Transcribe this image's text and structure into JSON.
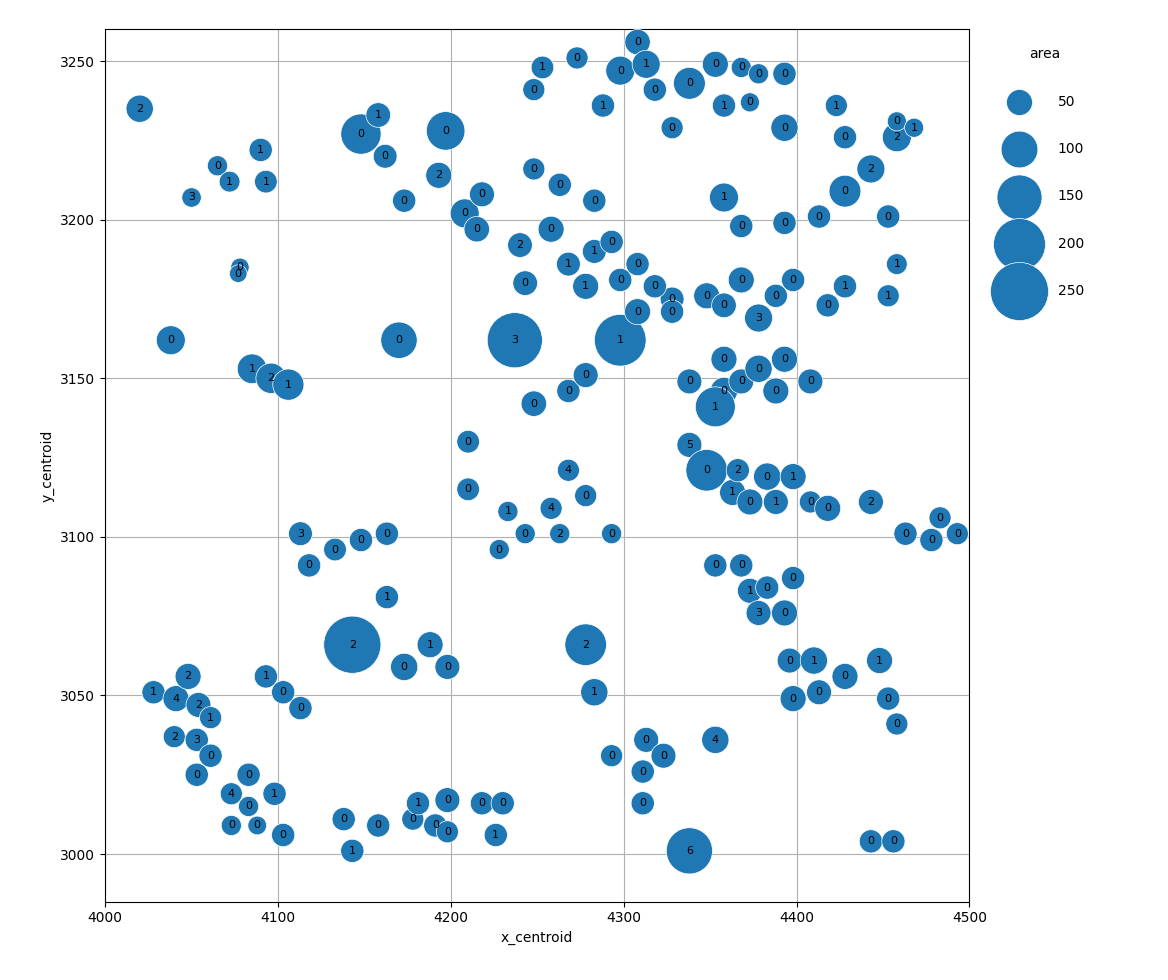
{
  "chart_data": {
    "type": "bubble",
    "xlabel": "x_centroid",
    "ylabel": "y_centroid",
    "xlim": [
      4000,
      4500
    ],
    "ylim": [
      2985,
      3260
    ],
    "xticks": [
      4000,
      4100,
      4200,
      4300,
      4400,
      4500
    ],
    "yticks": [
      3000,
      3050,
      3100,
      3150,
      3200,
      3250
    ],
    "grid": true,
    "legend": "upper left",
    "size_legend": {
      "title": "area",
      "values": [
        50,
        100,
        150,
        200,
        250
      ]
    },
    "points": [
      {
        "x": 4020,
        "y": 3235,
        "size": 55,
        "label": "2"
      },
      {
        "x": 4065,
        "y": 3217,
        "size": 30,
        "label": "0"
      },
      {
        "x": 4090,
        "y": 3222,
        "size": 40,
        "label": "1"
      },
      {
        "x": 4050,
        "y": 3207,
        "size": 28,
        "label": "3"
      },
      {
        "x": 4072,
        "y": 3212,
        "size": 32,
        "label": "1"
      },
      {
        "x": 4093,
        "y": 3212,
        "size": 38,
        "label": "1"
      },
      {
        "x": 4078,
        "y": 3185,
        "size": 25,
        "label": "0"
      },
      {
        "x": 4148,
        "y": 3227,
        "size": 120,
        "label": "0"
      },
      {
        "x": 4158,
        "y": 3233,
        "size": 45,
        "label": "1"
      },
      {
        "x": 4162,
        "y": 3220,
        "size": 42,
        "label": "0"
      },
      {
        "x": 4197,
        "y": 3228,
        "size": 110,
        "label": "0"
      },
      {
        "x": 4208,
        "y": 3202,
        "size": 62,
        "label": "0"
      },
      {
        "x": 4077,
        "y": 3183,
        "size": 23,
        "label": "0"
      },
      {
        "x": 4038,
        "y": 3162,
        "size": 62,
        "label": "0"
      },
      {
        "x": 4085,
        "y": 3153,
        "size": 65,
        "label": "1"
      },
      {
        "x": 4096,
        "y": 3150,
        "size": 68,
        "label": "2"
      },
      {
        "x": 4106,
        "y": 3148,
        "size": 72,
        "label": "1"
      },
      {
        "x": 4170,
        "y": 3162,
        "size": 98,
        "label": "0"
      },
      {
        "x": 4237,
        "y": 3162,
        "size": 225,
        "label": "3"
      },
      {
        "x": 4248,
        "y": 3142,
        "size": 48,
        "label": "0"
      },
      {
        "x": 4210,
        "y": 3130,
        "size": 38,
        "label": "0"
      },
      {
        "x": 4210,
        "y": 3115,
        "size": 38,
        "label": "0"
      },
      {
        "x": 4243,
        "y": 3180,
        "size": 45,
        "label": "0"
      },
      {
        "x": 4298,
        "y": 3162,
        "size": 198,
        "label": "1"
      },
      {
        "x": 4328,
        "y": 3175,
        "size": 42,
        "label": "0"
      },
      {
        "x": 4215,
        "y": 3197,
        "size": 48,
        "label": "0"
      },
      {
        "x": 4240,
        "y": 3192,
        "size": 45,
        "label": "2"
      },
      {
        "x": 4258,
        "y": 3197,
        "size": 50,
        "label": "0"
      },
      {
        "x": 4268,
        "y": 3186,
        "size": 42,
        "label": "1"
      },
      {
        "x": 4278,
        "y": 3179,
        "size": 50,
        "label": "1"
      },
      {
        "x": 4283,
        "y": 3190,
        "size": 42,
        "label": "1"
      },
      {
        "x": 4293,
        "y": 3193,
        "size": 40,
        "label": "0"
      },
      {
        "x": 4298,
        "y": 3181,
        "size": 40,
        "label": "0"
      },
      {
        "x": 4308,
        "y": 3186,
        "size": 40,
        "label": "0"
      },
      {
        "x": 4308,
        "y": 3171,
        "size": 50,
        "label": "0"
      },
      {
        "x": 4318,
        "y": 3179,
        "size": 40,
        "label": "0"
      },
      {
        "x": 4328,
        "y": 3171,
        "size": 40,
        "label": "0"
      },
      {
        "x": 4348,
        "y": 3176,
        "size": 50,
        "label": "0"
      },
      {
        "x": 4358,
        "y": 3173,
        "size": 45,
        "label": "0"
      },
      {
        "x": 4368,
        "y": 3181,
        "size": 50,
        "label": "0"
      },
      {
        "x": 4378,
        "y": 3169,
        "size": 58,
        "label": "3"
      },
      {
        "x": 4388,
        "y": 3176,
        "size": 40,
        "label": "0"
      },
      {
        "x": 4398,
        "y": 3181,
        "size": 40,
        "label": "0"
      },
      {
        "x": 4418,
        "y": 3173,
        "size": 40,
        "label": "0"
      },
      {
        "x": 4428,
        "y": 3179,
        "size": 40,
        "label": "1"
      },
      {
        "x": 4453,
        "y": 3176,
        "size": 36,
        "label": "1"
      },
      {
        "x": 4458,
        "y": 3186,
        "size": 32,
        "label": "1"
      },
      {
        "x": 4358,
        "y": 3207,
        "size": 62,
        "label": "1"
      },
      {
        "x": 4368,
        "y": 3198,
        "size": 40,
        "label": "0"
      },
      {
        "x": 4393,
        "y": 3199,
        "size": 40,
        "label": "0"
      },
      {
        "x": 4413,
        "y": 3201,
        "size": 40,
        "label": "0"
      },
      {
        "x": 4428,
        "y": 3209,
        "size": 75,
        "label": "0"
      },
      {
        "x": 4453,
        "y": 3201,
        "size": 40,
        "label": "0"
      },
      {
        "x": 4443,
        "y": 3216,
        "size": 58,
        "label": "2"
      },
      {
        "x": 4458,
        "y": 3226,
        "size": 62,
        "label": "2"
      },
      {
        "x": 4253,
        "y": 3248,
        "size": 38,
        "label": "1"
      },
      {
        "x": 4273,
        "y": 3251,
        "size": 36,
        "label": "0"
      },
      {
        "x": 4298,
        "y": 3247,
        "size": 62,
        "label": "0"
      },
      {
        "x": 4308,
        "y": 3256,
        "size": 48,
        "label": "0"
      },
      {
        "x": 4313,
        "y": 3249,
        "size": 58,
        "label": "1"
      },
      {
        "x": 4318,
        "y": 3241,
        "size": 40,
        "label": "0"
      },
      {
        "x": 4338,
        "y": 3243,
        "size": 75,
        "label": "0"
      },
      {
        "x": 4353,
        "y": 3249,
        "size": 50,
        "label": "0"
      },
      {
        "x": 4358,
        "y": 3236,
        "size": 40,
        "label": "1"
      },
      {
        "x": 4368,
        "y": 3248,
        "size": 30,
        "label": "0"
      },
      {
        "x": 4373,
        "y": 3237,
        "size": 27,
        "label": "0"
      },
      {
        "x": 4378,
        "y": 3246,
        "size": 30,
        "label": "0"
      },
      {
        "x": 4393,
        "y": 3246,
        "size": 40,
        "label": "0"
      },
      {
        "x": 4248,
        "y": 3241,
        "size": 36,
        "label": "0"
      },
      {
        "x": 4288,
        "y": 3236,
        "size": 40,
        "label": "1"
      },
      {
        "x": 4328,
        "y": 3229,
        "size": 36,
        "label": "0"
      },
      {
        "x": 4393,
        "y": 3229,
        "size": 55,
        "label": "0"
      },
      {
        "x": 4423,
        "y": 3236,
        "size": 36,
        "label": "1"
      },
      {
        "x": 4428,
        "y": 3226,
        "size": 40,
        "label": "0"
      },
      {
        "x": 4458,
        "y": 3231,
        "size": 27,
        "label": "0"
      },
      {
        "x": 4468,
        "y": 3229,
        "size": 27,
        "label": "1"
      },
      {
        "x": 4248,
        "y": 3216,
        "size": 36,
        "label": "0"
      },
      {
        "x": 4263,
        "y": 3211,
        "size": 40,
        "label": "0"
      },
      {
        "x": 4283,
        "y": 3206,
        "size": 40,
        "label": "0"
      },
      {
        "x": 4173,
        "y": 3206,
        "size": 40,
        "label": "0"
      },
      {
        "x": 4193,
        "y": 3214,
        "size": 50,
        "label": "2"
      },
      {
        "x": 4218,
        "y": 3208,
        "size": 46,
        "label": "0"
      },
      {
        "x": 4113,
        "y": 3101,
        "size": 42,
        "label": "3"
      },
      {
        "x": 4118,
        "y": 3091,
        "size": 40,
        "label": "0"
      },
      {
        "x": 4133,
        "y": 3096,
        "size": 38,
        "label": "0"
      },
      {
        "x": 4148,
        "y": 3099,
        "size": 40,
        "label": "0"
      },
      {
        "x": 4163,
        "y": 3101,
        "size": 40,
        "label": "0"
      },
      {
        "x": 4163,
        "y": 3081,
        "size": 40,
        "label": "1"
      },
      {
        "x": 4228,
        "y": 3096,
        "size": 30,
        "label": "0"
      },
      {
        "x": 4233,
        "y": 3108,
        "size": 30,
        "label": "1"
      },
      {
        "x": 4243,
        "y": 3101,
        "size": 30,
        "label": "0"
      },
      {
        "x": 4258,
        "y": 3109,
        "size": 36,
        "label": "4"
      },
      {
        "x": 4263,
        "y": 3101,
        "size": 30,
        "label": "2"
      },
      {
        "x": 4268,
        "y": 3121,
        "size": 36,
        "label": "4"
      },
      {
        "x": 4278,
        "y": 3113,
        "size": 36,
        "label": "0"
      },
      {
        "x": 4293,
        "y": 3101,
        "size": 30,
        "label": "0"
      },
      {
        "x": 4338,
        "y": 3129,
        "size": 46,
        "label": "5"
      },
      {
        "x": 4348,
        "y": 3121,
        "size": 128,
        "label": "0"
      },
      {
        "x": 4363,
        "y": 3114,
        "size": 50,
        "label": "1"
      },
      {
        "x": 4366,
        "y": 3121,
        "size": 40,
        "label": "2"
      },
      {
        "x": 4373,
        "y": 3111,
        "size": 50,
        "label": "0"
      },
      {
        "x": 4383,
        "y": 3119,
        "size": 55,
        "label": "0"
      },
      {
        "x": 4388,
        "y": 3111,
        "size": 46,
        "label": "1"
      },
      {
        "x": 4398,
        "y": 3119,
        "size": 50,
        "label": "1"
      },
      {
        "x": 4408,
        "y": 3111,
        "size": 36,
        "label": "0"
      },
      {
        "x": 4418,
        "y": 3109,
        "size": 50,
        "label": "0"
      },
      {
        "x": 4443,
        "y": 3111,
        "size": 46,
        "label": "2"
      },
      {
        "x": 4463,
        "y": 3101,
        "size": 40,
        "label": "0"
      },
      {
        "x": 4478,
        "y": 3099,
        "size": 40,
        "label": "0"
      },
      {
        "x": 4483,
        "y": 3106,
        "size": 36,
        "label": "0"
      },
      {
        "x": 4493,
        "y": 3101,
        "size": 36,
        "label": "0"
      },
      {
        "x": 4353,
        "y": 3091,
        "size": 40,
        "label": "0"
      },
      {
        "x": 4368,
        "y": 3091,
        "size": 40,
        "label": "0"
      },
      {
        "x": 4373,
        "y": 3083,
        "size": 46,
        "label": "1"
      },
      {
        "x": 4378,
        "y": 3076,
        "size": 46,
        "label": "3"
      },
      {
        "x": 4383,
        "y": 3084,
        "size": 40,
        "label": "0"
      },
      {
        "x": 4393,
        "y": 3076,
        "size": 50,
        "label": "0"
      },
      {
        "x": 4398,
        "y": 3087,
        "size": 40,
        "label": "0"
      },
      {
        "x": 4396,
        "y": 3061,
        "size": 46,
        "label": "0"
      },
      {
        "x": 4398,
        "y": 3049,
        "size": 50,
        "label": "0"
      },
      {
        "x": 4410,
        "y": 3061,
        "size": 55,
        "label": "1"
      },
      {
        "x": 4358,
        "y": 3146,
        "size": 55,
        "label": "0"
      },
      {
        "x": 4358,
        "y": 3156,
        "size": 50,
        "label": "0"
      },
      {
        "x": 4368,
        "y": 3149,
        "size": 46,
        "label": "0"
      },
      {
        "x": 4378,
        "y": 3153,
        "size": 55,
        "label": "0"
      },
      {
        "x": 4388,
        "y": 3146,
        "size": 50,
        "label": "0"
      },
      {
        "x": 4393,
        "y": 3156,
        "size": 50,
        "label": "0"
      },
      {
        "x": 4408,
        "y": 3149,
        "size": 46,
        "label": "0"
      },
      {
        "x": 4338,
        "y": 3149,
        "size": 46,
        "label": "0"
      },
      {
        "x": 4268,
        "y": 3146,
        "size": 40,
        "label": "0"
      },
      {
        "x": 4278,
        "y": 3151,
        "size": 46,
        "label": "0"
      },
      {
        "x": 4353,
        "y": 3141,
        "size": 118,
        "label": "1"
      },
      {
        "x": 4143,
        "y": 3066,
        "size": 242,
        "label": "2"
      },
      {
        "x": 4173,
        "y": 3059,
        "size": 55,
        "label": "0"
      },
      {
        "x": 4188,
        "y": 3066,
        "size": 50,
        "label": "1"
      },
      {
        "x": 4198,
        "y": 3059,
        "size": 46,
        "label": "0"
      },
      {
        "x": 4278,
        "y": 3066,
        "size": 128,
        "label": "2"
      },
      {
        "x": 4283,
        "y": 3051,
        "size": 55,
        "label": "1"
      },
      {
        "x": 4293,
        "y": 3031,
        "size": 36,
        "label": "0"
      },
      {
        "x": 4311,
        "y": 3026,
        "size": 40,
        "label": "0"
      },
      {
        "x": 4311,
        "y": 3016,
        "size": 40,
        "label": "0"
      },
      {
        "x": 4313,
        "y": 3036,
        "size": 46,
        "label": "0"
      },
      {
        "x": 4338,
        "y": 3001,
        "size": 158,
        "label": "6"
      },
      {
        "x": 4323,
        "y": 3031,
        "size": 46,
        "label": "0"
      },
      {
        "x": 4353,
        "y": 3036,
        "size": 55,
        "label": "4"
      },
      {
        "x": 4443,
        "y": 3004,
        "size": 40,
        "label": "0"
      },
      {
        "x": 4456,
        "y": 3004,
        "size": 40,
        "label": "0"
      },
      {
        "x": 4028,
        "y": 3051,
        "size": 40,
        "label": "1"
      },
      {
        "x": 4041,
        "y": 3049,
        "size": 50,
        "label": "4"
      },
      {
        "x": 4048,
        "y": 3056,
        "size": 50,
        "label": "2"
      },
      {
        "x": 4054,
        "y": 3047,
        "size": 46,
        "label": "2"
      },
      {
        "x": 4040,
        "y": 3037,
        "size": 36,
        "label": "2"
      },
      {
        "x": 4053,
        "y": 3036,
        "size": 40,
        "label": "3"
      },
      {
        "x": 4061,
        "y": 3031,
        "size": 40,
        "label": "0"
      },
      {
        "x": 4053,
        "y": 3025,
        "size": 40,
        "label": "0"
      },
      {
        "x": 4073,
        "y": 3019,
        "size": 36,
        "label": "4"
      },
      {
        "x": 4083,
        "y": 3025,
        "size": 40,
        "label": "0"
      },
      {
        "x": 4083,
        "y": 3015,
        "size": 30,
        "label": "0"
      },
      {
        "x": 4073,
        "y": 3009,
        "size": 30,
        "label": "0"
      },
      {
        "x": 4088,
        "y": 3009,
        "size": 26,
        "label": "0"
      },
      {
        "x": 4098,
        "y": 3019,
        "size": 40,
        "label": "1"
      },
      {
        "x": 4103,
        "y": 3006,
        "size": 40,
        "label": "0"
      },
      {
        "x": 4061,
        "y": 3043,
        "size": 36,
        "label": "1"
      },
      {
        "x": 4093,
        "y": 3056,
        "size": 40,
        "label": "1"
      },
      {
        "x": 4103,
        "y": 3051,
        "size": 40,
        "label": "0"
      },
      {
        "x": 4113,
        "y": 3046,
        "size": 40,
        "label": "0"
      },
      {
        "x": 4138,
        "y": 3011,
        "size": 40,
        "label": "0"
      },
      {
        "x": 4143,
        "y": 3001,
        "size": 40,
        "label": "1"
      },
      {
        "x": 4158,
        "y": 3009,
        "size": 40,
        "label": "0"
      },
      {
        "x": 4178,
        "y": 3011,
        "size": 36,
        "label": "0"
      },
      {
        "x": 4181,
        "y": 3016,
        "size": 40,
        "label": "1"
      },
      {
        "x": 4191,
        "y": 3009,
        "size": 40,
        "label": "0"
      },
      {
        "x": 4198,
        "y": 3017,
        "size": 46,
        "label": "0"
      },
      {
        "x": 4198,
        "y": 3007,
        "size": 36,
        "label": "0"
      },
      {
        "x": 4218,
        "y": 3016,
        "size": 40,
        "label": "0"
      },
      {
        "x": 4226,
        "y": 3006,
        "size": 40,
        "label": "1"
      },
      {
        "x": 4230,
        "y": 3016,
        "size": 40,
        "label": "0"
      },
      {
        "x": 4413,
        "y": 3051,
        "size": 46,
        "label": "0"
      },
      {
        "x": 4428,
        "y": 3056,
        "size": 50,
        "label": "0"
      },
      {
        "x": 4448,
        "y": 3061,
        "size": 50,
        "label": "1"
      },
      {
        "x": 4453,
        "y": 3049,
        "size": 40,
        "label": "0"
      },
      {
        "x": 4458,
        "y": 3041,
        "size": 36,
        "label": "0"
      }
    ]
  }
}
